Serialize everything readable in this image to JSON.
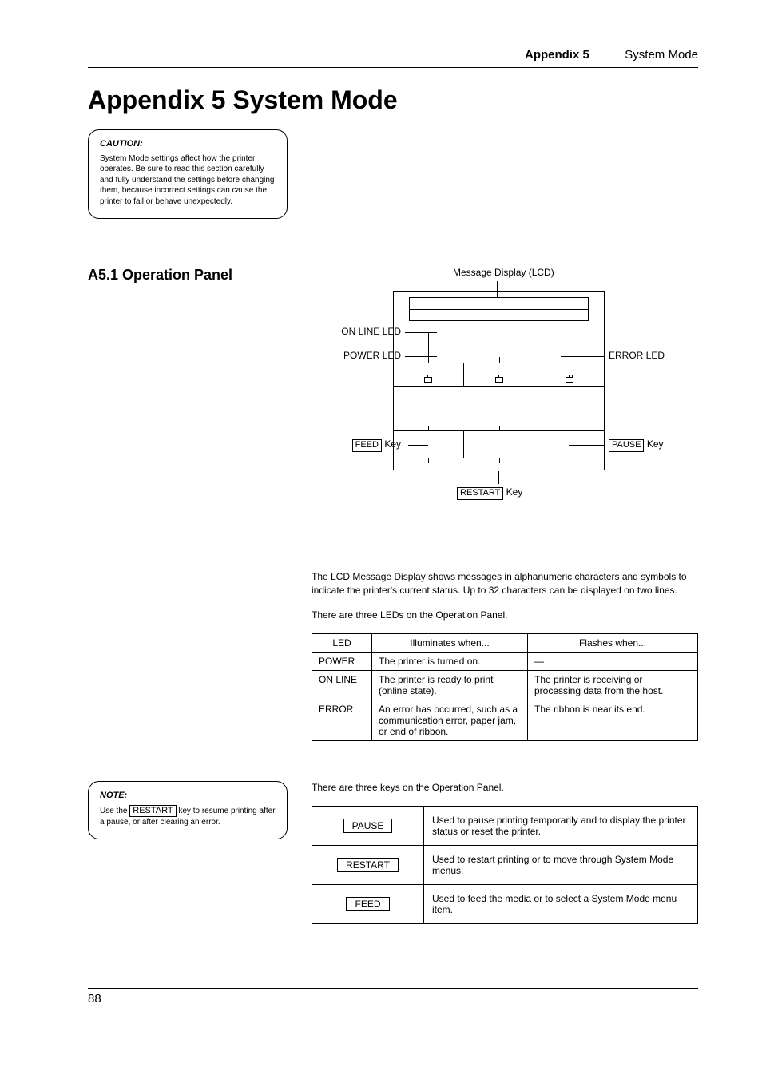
{
  "header": {
    "appendix": "Appendix 5",
    "title": "System Mode"
  },
  "page_title": "Appendix 5 System Mode",
  "caution": {
    "title": "CAUTION:",
    "text": "System Mode settings affect how the printer operates. Be sure to read this section carefully and fully understand the settings before changing them, because incorrect settings can cause the printer to fail or behave unexpectedly."
  },
  "section": {
    "heading": "A5.1   Operation Panel"
  },
  "diagram": {
    "lcd": "Message Display (LCD)",
    "online": "ON LINE LED",
    "power": "POWER LED",
    "error": "ERROR LED",
    "feed_key": "FEED",
    "feed_suffix": " Key",
    "pause_key": "PAUSE",
    "pause_suffix": " Key",
    "restart_key": "RESTART",
    "restart_suffix": " Key"
  },
  "intro1": "The LCD Message Display shows messages in alphanumeric characters and symbols to indicate the printer's current status. Up to 32 characters can be displayed on two lines.",
  "intro2": "There are three LEDs on the Operation Panel.",
  "led_table": {
    "headers": [
      "LED",
      "Illuminates when...",
      "Flashes when..."
    ],
    "rows": [
      [
        "POWER",
        "The printer is turned on.",
        "—"
      ],
      [
        "ON LINE",
        "The printer is ready to print (online state).",
        "The printer is receiving or processing data from the host."
      ],
      [
        "ERROR",
        "An error has occurred, such as a communication error, paper jam, or end of ribbon.",
        "The ribbon is near its end."
      ]
    ]
  },
  "note": {
    "title": "NOTE:",
    "rest_key": "RESTART",
    "text_before": "Use the ",
    "text_after": " key to resume printing after a pause, or after clearing an error."
  },
  "keys_intro": "There are three keys on the Operation Panel.",
  "keys_table": {
    "rows": [
      {
        "key": "PAUSE",
        "desc": "Used to pause printing temporarily and to display the printer status or reset the printer."
      },
      {
        "key": "RESTART",
        "desc": "Used to restart printing or to move through System Mode menus."
      },
      {
        "key": "FEED",
        "desc": "Used to feed the media or to select a System Mode menu item."
      }
    ]
  },
  "page_number": "88",
  "colors": {
    "text": "#000000",
    "bg": "#ffffff",
    "border": "#000000"
  }
}
